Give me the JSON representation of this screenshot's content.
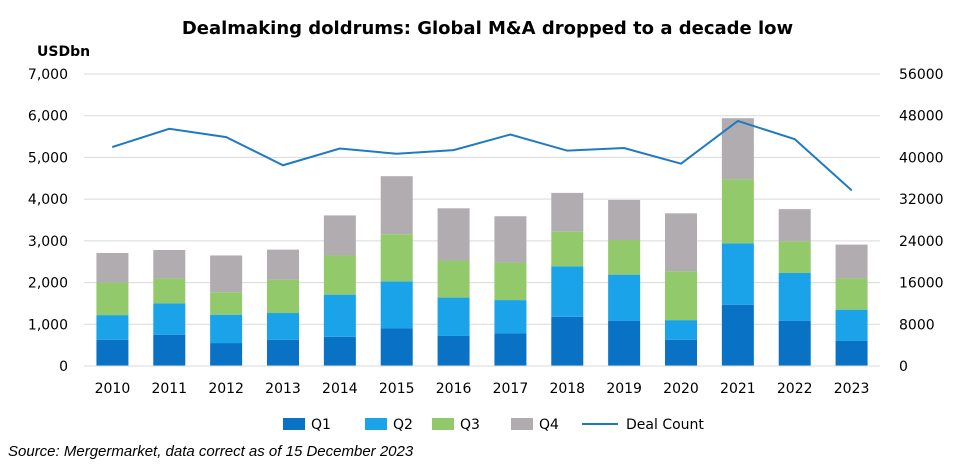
{
  "chart_data": {
    "type": "bar",
    "stacked": true,
    "title": "Dealmaking doldrums: Global M&A dropped to a decade low",
    "ylabel": "USDbn",
    "ylim": [
      0,
      7000
    ],
    "y2lim": [
      0,
      56000
    ],
    "y_ticks": [
      "7,000",
      "6,000",
      "5,000",
      "4,000",
      "3,000",
      "2,000",
      "1,000",
      "0"
    ],
    "y2_ticks": [
      "56000",
      "48000",
      "40000",
      "32000",
      "24000",
      "16000",
      "8000",
      "0"
    ],
    "categories": [
      "2010",
      "2011",
      "2012",
      "2013",
      "2014",
      "2015",
      "2016",
      "2017",
      "2018",
      "2019",
      "2020",
      "2021",
      "2022",
      "2023"
    ],
    "series": [
      {
        "name": "Q1",
        "color": "#0a72c4",
        "values": [
          630,
          750,
          550,
          630,
          700,
          900,
          720,
          780,
          1180,
          1080,
          630,
          1470,
          1080,
          600
        ]
      },
      {
        "name": "Q2",
        "color": "#1aa3e8",
        "values": [
          590,
          750,
          680,
          640,
          1010,
          1130,
          920,
          800,
          1210,
          1110,
          470,
          1470,
          1150,
          750
        ]
      },
      {
        "name": "Q3",
        "color": "#92c96a",
        "values": [
          780,
          600,
          540,
          800,
          940,
          1130,
          890,
          900,
          840,
          830,
          1170,
          1540,
          760,
          750
        ]
      },
      {
        "name": "Q4",
        "color": "#b0acb0",
        "values": [
          710,
          680,
          880,
          720,
          960,
          1390,
          1250,
          1110,
          920,
          960,
          1390,
          1460,
          770,
          810
        ]
      }
    ],
    "line": {
      "name": "Deal Count",
      "color": "#1f7bbf",
      "axis": "right",
      "values": [
        42000,
        45500,
        43900,
        38500,
        41700,
        40700,
        41400,
        44400,
        41300,
        41800,
        38800,
        47000,
        43500,
        33700
      ]
    },
    "legend": [
      "Q1",
      "Q2",
      "Q3",
      "Q4",
      "Deal Count"
    ],
    "legend_position": "bottom",
    "grid": true
  },
  "footer": {
    "source": "Source: Mergermarket, data correct as of 15 December 2023"
  }
}
